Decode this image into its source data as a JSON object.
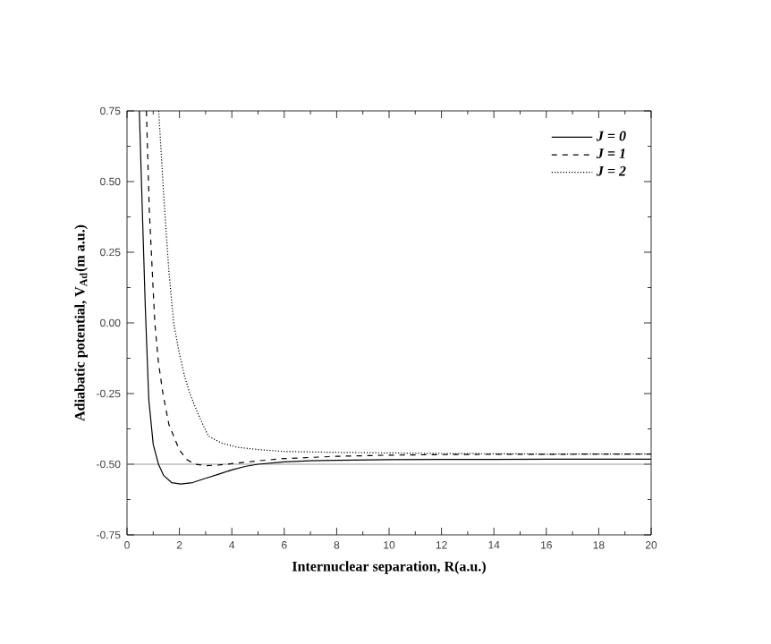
{
  "chart_data": {
    "type": "line",
    "xlabel": "Internuclear separation, R(a.u.)",
    "ylabel": "Adiabatic potential, V$_{Ad}$(m a.u.)",
    "xlim": [
      0,
      20
    ],
    "ylim": [
      -0.75,
      0.75
    ],
    "xticks": [
      0,
      2,
      4,
      6,
      8,
      10,
      12,
      14,
      16,
      18,
      20
    ],
    "yticks": [
      {
        "value": -0.75,
        "label": "-0.75"
      },
      {
        "value": -0.5,
        "label": "-0.50"
      },
      {
        "value": -0.25,
        "label": "-0.25"
      },
      {
        "value": 0,
        "label": "0.00"
      },
      {
        "value": 0.25,
        "label": "0.25"
      },
      {
        "value": 0.5,
        "label": "0.50"
      },
      {
        "value": 0.75,
        "label": "0.75"
      }
    ],
    "grid": false,
    "legend": "top right",
    "marker": "none",
    "ref_lines": [
      {
        "axis": "y",
        "value": -0.5,
        "color": "#808080",
        "line_style": "solid"
      }
    ],
    "series": [
      {
        "name": "J = 0",
        "color": "#000000",
        "line_style": "solid",
        "x": [
          0.47,
          0.6,
          0.7,
          0.83,
          1.0,
          1.2,
          1.4,
          1.7,
          2.05,
          2.5,
          3.0,
          3.5,
          4.0,
          4.5,
          5.0,
          6.0,
          7.0,
          8.0,
          10.0,
          12.0,
          14.0,
          16.0,
          18.0,
          20.0
        ],
        "values": [
          0.75,
          0.35,
          0.05,
          -0.27,
          -0.43,
          -0.5,
          -0.54,
          -0.565,
          -0.57,
          -0.565,
          -0.55,
          -0.535,
          -0.52,
          -0.508,
          -0.5,
          -0.492,
          -0.488,
          -0.486,
          -0.484,
          -0.483,
          -0.483,
          -0.482,
          -0.482,
          -0.482
        ]
      },
      {
        "name": "J = 1",
        "color": "#000000",
        "line_style": "dashed",
        "x": [
          0.74,
          0.85,
          1.06,
          1.2,
          1.37,
          1.6,
          2.0,
          2.3,
          2.6,
          3.0,
          3.5,
          4.0,
          5.0,
          6.0,
          8.0,
          10.0,
          12.0,
          14.0,
          16.0,
          18.0,
          20.0
        ],
        "values": [
          0.75,
          0.4,
          0.0,
          -0.14,
          -0.25,
          -0.36,
          -0.45,
          -0.485,
          -0.5,
          -0.505,
          -0.503,
          -0.498,
          -0.488,
          -0.48,
          -0.472,
          -0.468,
          -0.466,
          -0.465,
          -0.465,
          -0.464,
          -0.464
        ]
      },
      {
        "name": "J = 2",
        "color": "#000000",
        "line_style": "dotted",
        "x": [
          1.21,
          1.4,
          1.6,
          1.78,
          2.0,
          2.2,
          2.4,
          2.7,
          3.1,
          3.6,
          4.2,
          5.0,
          6.0,
          8.0,
          10.0,
          12.0,
          14.0,
          16.0,
          18.0,
          20.0
        ],
        "values": [
          0.75,
          0.45,
          0.18,
          0.0,
          -0.11,
          -0.19,
          -0.25,
          -0.32,
          -0.4,
          -0.425,
          -0.44,
          -0.448,
          -0.455,
          -0.458,
          -0.46,
          -0.462,
          -0.463,
          -0.464,
          -0.464,
          -0.464
        ]
      }
    ]
  }
}
